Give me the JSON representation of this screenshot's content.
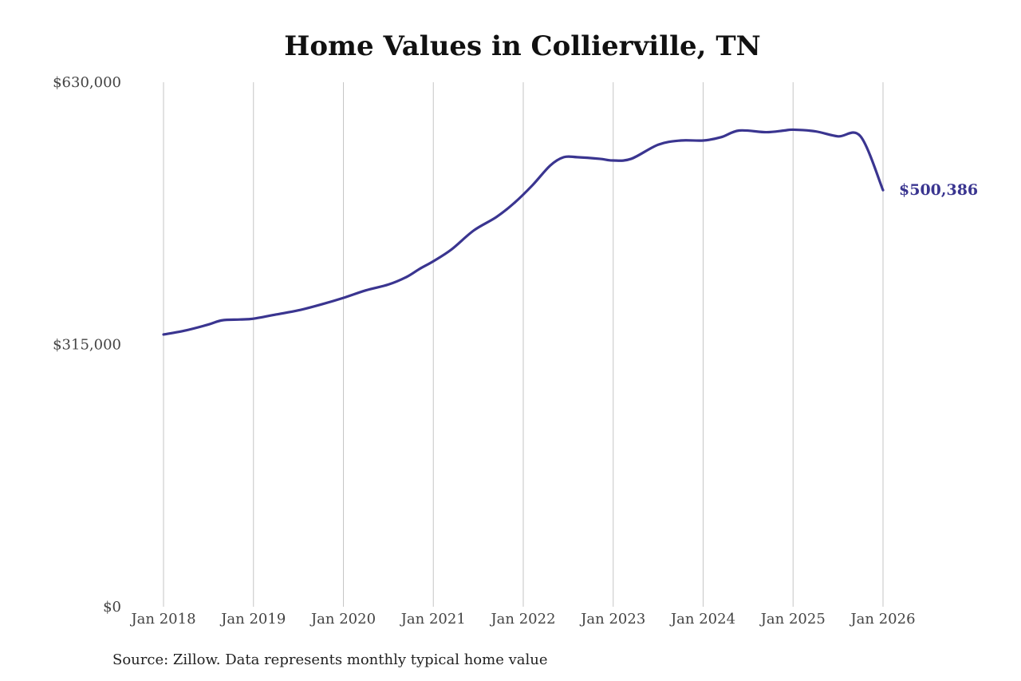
{
  "chart_data": {
    "type": "line",
    "title": "Home Values in Collierville, TN",
    "xlabel": "",
    "ylabel": "",
    "xlim": [
      2018.0,
      2026.0
    ],
    "ylim": [
      0,
      630000
    ],
    "x_ticks": [
      2018,
      2019,
      2020,
      2021,
      2022,
      2023,
      2024,
      2025,
      2026
    ],
    "x_tick_labels": [
      "Jan 2018",
      "Jan 2019",
      "Jan 2020",
      "Jan 2021",
      "Jan 2022",
      "Jan 2023",
      "Jan 2024",
      "Jan 2025",
      "Jan 2026"
    ],
    "y_ticks": [
      0,
      315000,
      630000
    ],
    "y_tick_labels": [
      "$0",
      "$315,000",
      "$630,000"
    ],
    "grid": "vertical",
    "series": [
      {
        "color": "#3a3590",
        "x": [
          2018.0,
          2018.25,
          2018.5,
          2018.65,
          2018.85,
          2019.0,
          2019.25,
          2019.5,
          2019.75,
          2020.0,
          2020.25,
          2020.5,
          2020.7,
          2020.85,
          2021.0,
          2021.2,
          2021.45,
          2021.7,
          2021.9,
          2022.1,
          2022.3,
          2022.45,
          2022.6,
          2022.85,
          2023.0,
          2023.2,
          2023.5,
          2023.75,
          2024.0,
          2024.2,
          2024.4,
          2024.7,
          2024.9,
          2025.0,
          2025.25,
          2025.5,
          2025.75,
          2026.0
        ],
        "values": [
          327000,
          332000,
          339000,
          344000,
          345000,
          346000,
          351000,
          356000,
          363000,
          371000,
          380000,
          387000,
          396000,
          406000,
          415000,
          429000,
          452000,
          468000,
          485000,
          506000,
          530000,
          540000,
          540000,
          538000,
          536000,
          538000,
          555000,
          560000,
          560000,
          564000,
          572000,
          570000,
          572000,
          573000,
          571000,
          565000,
          565000,
          500386
        ]
      }
    ],
    "end_label": "$500,386"
  },
  "source": "Source: Zillow. Data represents monthly typical home value"
}
